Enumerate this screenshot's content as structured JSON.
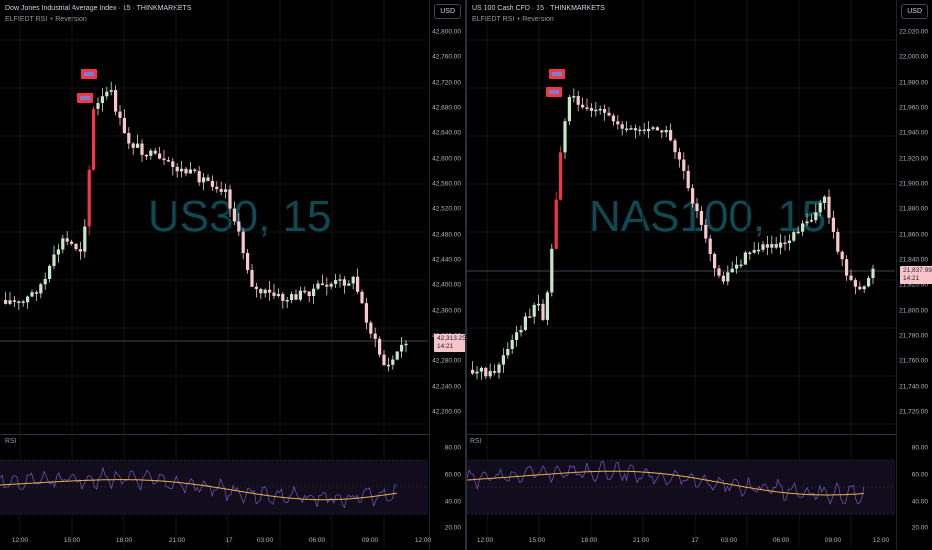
{
  "left": {
    "title": "Dow Jones Industrial Average Index · 15 · THINKMARKETS",
    "indicator": "ELFIEDT RSI + Reversion",
    "currency": "USD",
    "watermark": "US30, 15",
    "price_ticks": [
      "42,800.00",
      "42,760.00",
      "42,720.00",
      "42,680.00",
      "42,640.00",
      "42,600.00",
      "42,560.00",
      "42,520.00",
      "42,480.00",
      "42,440.00",
      "42,400.00",
      "42,360.00",
      "42,320.00",
      "42,280.00",
      "42,240.00",
      "42,200.00"
    ],
    "last_price": "42,313.25",
    "countdown": "14:21",
    "rsi_label": "RSI",
    "rsi_ticks": [
      "80.00",
      "60.00",
      "40.00",
      "20.00"
    ],
    "time_ticks": [
      "12:00",
      "15:00",
      "18:00",
      "21:00",
      "17",
      "03:00",
      "06:00",
      "09:00",
      "12:00"
    ]
  },
  "right": {
    "title": "US 100 Cash CFD · 15 · THINKMARKETS",
    "indicator": "ELFIEDT RSI + Reversion",
    "currency": "USD",
    "watermark": "NAS100, 15",
    "price_ticks": [
      "22,020.00",
      "22,000.00",
      "21,980.00",
      "21,960.00",
      "21,940.00",
      "21,920.00",
      "21,900.00",
      "21,880.00",
      "21,860.00",
      "21,840.00",
      "21,820.00",
      "21,800.00",
      "21,780.00",
      "21,760.00",
      "21,740.00",
      "21,720.00"
    ],
    "last_price": "21,837.99",
    "countdown": "14:21",
    "rsi_label": "RSI",
    "rsi_ticks": [
      "80.00",
      "60.00",
      "40.00",
      "20.00"
    ],
    "time_ticks": [
      "12:00",
      "15:00",
      "18:00",
      "21:00",
      "17",
      "03:00",
      "06:00",
      "09:00",
      "12:00"
    ]
  },
  "colors": {
    "bull": "#c8e6c9",
    "bear": "#f8c8cc",
    "signal": "#f23645",
    "rsi_line": "#7e57c2",
    "rsi_ma": "#e6b54a",
    "watermark": "#0f4a52"
  }
}
